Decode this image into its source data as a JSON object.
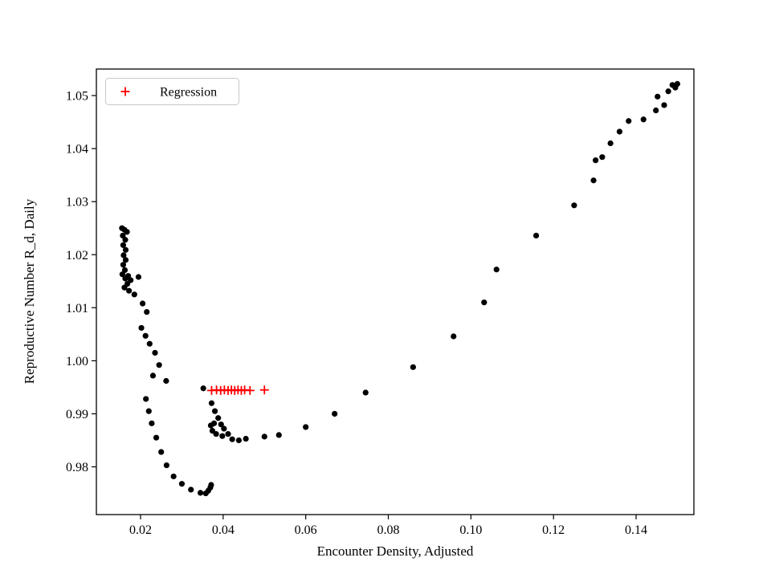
{
  "figure": {
    "background": "#ffffff",
    "frame_color": "#000000"
  },
  "chart_data": {
    "type": "scatter",
    "title": "",
    "xlabel": "Encounter Density, Adjusted",
    "ylabel": "Reproductive Number R_d, Daily",
    "xlim": [
      0.0093,
      0.154
    ],
    "ylim": [
      0.971,
      1.055
    ],
    "grid": false,
    "xticks": [
      0.02,
      0.04,
      0.06,
      0.08,
      0.1,
      0.12,
      0.14
    ],
    "xtick_labels": [
      "0.02",
      "0.04",
      "0.06",
      "0.08",
      "0.10",
      "0.12",
      "0.14"
    ],
    "yticks": [
      0.98,
      0.99,
      1.0,
      1.01,
      1.02,
      1.03,
      1.04,
      1.05
    ],
    "ytick_labels": [
      "0.98",
      "0.99",
      "1.00",
      "1.01",
      "1.02",
      "1.03",
      "1.04",
      "1.05"
    ],
    "legend": {
      "position": "upper-left",
      "entries": [
        {
          "label": "Regression",
          "marker": "plus",
          "color": "#ff0000"
        }
      ]
    },
    "series": [
      {
        "name": "observations",
        "marker": "circle",
        "color": "#000000",
        "points": [
          [
            0.0155,
            1.025
          ],
          [
            0.0161,
            1.0247
          ],
          [
            0.0167,
            1.0243
          ],
          [
            0.0157,
            1.0236
          ],
          [
            0.0163,
            1.0228
          ],
          [
            0.0158,
            1.0218
          ],
          [
            0.0164,
            1.0209
          ],
          [
            0.0159,
            1.0199
          ],
          [
            0.0164,
            1.019
          ],
          [
            0.0158,
            1.0181
          ],
          [
            0.0162,
            1.0171
          ],
          [
            0.0156,
            1.0163
          ],
          [
            0.0163,
            1.0155
          ],
          [
            0.017,
            1.016
          ],
          [
            0.0176,
            1.0152
          ],
          [
            0.0168,
            1.0145
          ],
          [
            0.0161,
            1.0138
          ],
          [
            0.0172,
            1.0132
          ],
          [
            0.0195,
            1.0158
          ],
          [
            0.0185,
            1.0125
          ],
          [
            0.0205,
            1.0108
          ],
          [
            0.0215,
            1.0092
          ],
          [
            0.0202,
            1.0062
          ],
          [
            0.0212,
            1.0047
          ],
          [
            0.0222,
            1.0032
          ],
          [
            0.0235,
            1.0015
          ],
          [
            0.0245,
            0.9992
          ],
          [
            0.023,
            0.9972
          ],
          [
            0.0262,
            0.9962
          ],
          [
            0.0213,
            0.9928
          ],
          [
            0.022,
            0.9905
          ],
          [
            0.0227,
            0.9882
          ],
          [
            0.0238,
            0.9855
          ],
          [
            0.025,
            0.9828
          ],
          [
            0.0263,
            0.9803
          ],
          [
            0.028,
            0.9782
          ],
          [
            0.03,
            0.9768
          ],
          [
            0.0322,
            0.9757
          ],
          [
            0.0345,
            0.9751
          ],
          [
            0.0358,
            0.975
          ],
          [
            0.0364,
            0.9755
          ],
          [
            0.0369,
            0.9761
          ],
          [
            0.0371,
            0.9766
          ],
          [
            0.0352,
            0.9948
          ],
          [
            0.0372,
            0.992
          ],
          [
            0.038,
            0.9905
          ],
          [
            0.0388,
            0.9892
          ],
          [
            0.037,
            0.9878
          ],
          [
            0.0378,
            0.9882
          ],
          [
            0.0374,
            0.9868
          ],
          [
            0.0383,
            0.9862
          ],
          [
            0.0395,
            0.988
          ],
          [
            0.0402,
            0.9872
          ],
          [
            0.0398,
            0.9858
          ],
          [
            0.0412,
            0.9862
          ],
          [
            0.0422,
            0.9852
          ],
          [
            0.0438,
            0.985
          ],
          [
            0.0455,
            0.9853
          ],
          [
            0.05,
            0.9857
          ],
          [
            0.0535,
            0.986
          ],
          [
            0.06,
            0.9875
          ],
          [
            0.067,
            0.99
          ],
          [
            0.0745,
            0.994
          ],
          [
            0.086,
            0.9988
          ],
          [
            0.0958,
            1.0046
          ],
          [
            0.1032,
            1.011
          ],
          [
            0.1062,
            1.0172
          ],
          [
            0.1158,
            1.0236
          ],
          [
            0.125,
            1.0293
          ],
          [
            0.1297,
            1.034
          ],
          [
            0.1302,
            1.0378
          ],
          [
            0.1318,
            1.0384
          ],
          [
            0.1338,
            1.041
          ],
          [
            0.136,
            1.0432
          ],
          [
            0.1382,
            1.0452
          ],
          [
            0.1418,
            1.0455
          ],
          [
            0.1448,
            1.0472
          ],
          [
            0.1452,
            1.0498
          ],
          [
            0.1468,
            1.0482
          ],
          [
            0.1478,
            1.0508
          ],
          [
            0.1488,
            1.052
          ],
          [
            0.1495,
            1.0515
          ],
          [
            0.15,
            1.0522
          ]
        ]
      },
      {
        "name": "Regression",
        "marker": "plus",
        "color": "#ff0000",
        "points": [
          [
            0.0372,
            0.9944
          ],
          [
            0.0384,
            0.9945
          ],
          [
            0.0394,
            0.9944
          ],
          [
            0.0403,
            0.9945
          ],
          [
            0.0412,
            0.9944
          ],
          [
            0.042,
            0.9945
          ],
          [
            0.0428,
            0.9944
          ],
          [
            0.0436,
            0.9945
          ],
          [
            0.0444,
            0.9944
          ],
          [
            0.0452,
            0.9945
          ],
          [
            0.0465,
            0.9944
          ],
          [
            0.05,
            0.9945
          ]
        ]
      }
    ]
  }
}
